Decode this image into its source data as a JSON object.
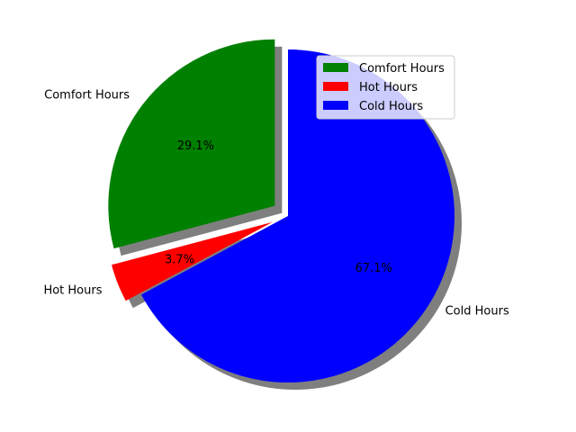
{
  "chart_data": {
    "type": "pie",
    "title": "",
    "slices": [
      {
        "label": "Comfort Hours",
        "value": 29.1,
        "percent_label": "29.1%",
        "color": "#008000",
        "exploded": true
      },
      {
        "label": "Hot Hours",
        "value": 3.7,
        "percent_label": "3.7%",
        "color": "#ff0000",
        "exploded": true
      },
      {
        "label": "Cold Hours",
        "value": 67.1,
        "percent_label": "67.1%",
        "color": "#0000ff",
        "exploded": false
      }
    ],
    "shadow": true,
    "legend": {
      "placement": "top-right",
      "entries": [
        "Comfort Hours",
        "Hot Hours",
        "Cold Hours"
      ]
    }
  }
}
